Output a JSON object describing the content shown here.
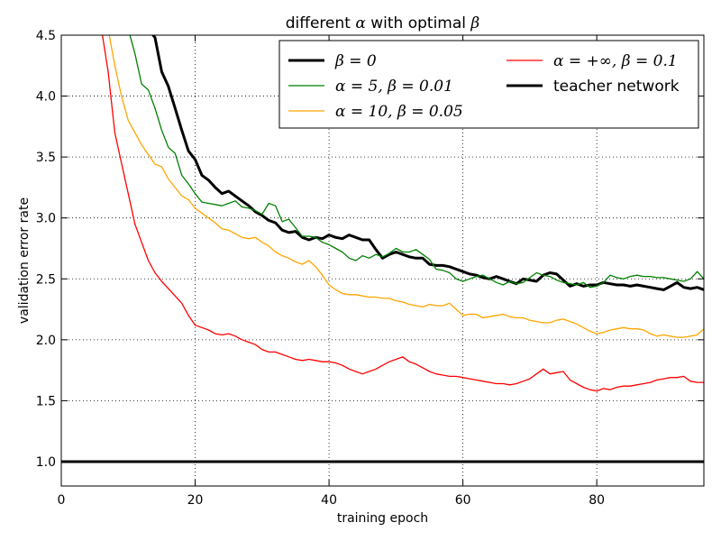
{
  "chart_data": {
    "type": "line",
    "title_prefix": "different ",
    "title_alpha": "α",
    "title_middle": " with optimal ",
    "title_beta": "β",
    "xlabel": "training epoch",
    "ylabel": "validation error rate",
    "xlim": [
      0,
      96
    ],
    "ylim": [
      0.8,
      4.5
    ],
    "xticks": [
      0,
      20,
      40,
      60,
      80
    ],
    "yticks": [
      1.0,
      1.5,
      2.0,
      2.5,
      3.0,
      3.5,
      4.0,
      4.5
    ],
    "ytick_labels": [
      "1.0",
      "1.5",
      "2.0",
      "2.5",
      "3.0",
      "3.5",
      "4.0",
      "4.5"
    ],
    "xtick_labels": [
      "0",
      "20",
      "40",
      "60",
      "80"
    ],
    "grid": true,
    "legend_position": "top-right",
    "series": [
      {
        "name": "β = 0",
        "color": "#000000",
        "stroke_width": 3,
        "x": [
          13,
          14,
          15,
          16,
          17,
          18,
          19,
          20,
          21,
          22,
          23,
          24,
          25,
          26,
          27,
          28,
          29,
          30,
          31,
          32,
          33,
          34,
          35,
          36,
          37,
          38,
          39,
          40,
          41,
          42,
          43,
          44,
          45,
          46,
          47,
          48,
          49,
          50,
          51,
          52,
          53,
          54,
          55,
          56,
          57,
          58,
          59,
          60,
          61,
          62,
          63,
          64,
          65,
          66,
          67,
          68,
          69,
          70,
          71,
          72,
          73,
          74,
          75,
          76,
          77,
          78,
          79,
          80,
          81,
          82,
          83,
          84,
          85,
          86,
          87,
          88,
          89,
          90,
          91,
          92,
          93,
          94,
          95,
          96
        ],
        "y": [
          4.55,
          4.48,
          4.2,
          4.08,
          3.9,
          3.72,
          3.55,
          3.48,
          3.35,
          3.31,
          3.25,
          3.2,
          3.22,
          3.18,
          3.14,
          3.1,
          3.05,
          3.02,
          2.98,
          2.96,
          2.9,
          2.88,
          2.89,
          2.84,
          2.82,
          2.84,
          2.83,
          2.86,
          2.84,
          2.83,
          2.86,
          2.84,
          2.82,
          2.82,
          2.74,
          2.67,
          2.7,
          2.72,
          2.7,
          2.68,
          2.67,
          2.67,
          2.62,
          2.61,
          2.61,
          2.6,
          2.58,
          2.56,
          2.54,
          2.53,
          2.51,
          2.5,
          2.52,
          2.5,
          2.48,
          2.46,
          2.5,
          2.49,
          2.48,
          2.53,
          2.55,
          2.54,
          2.49,
          2.44,
          2.46,
          2.44,
          2.45,
          2.45,
          2.47,
          2.46,
          2.45,
          2.45,
          2.44,
          2.45,
          2.44,
          2.43,
          2.42,
          2.41,
          2.44,
          2.47,
          2.43,
          2.42,
          2.43,
          2.41
        ]
      },
      {
        "name": "α = 5, β = 0.01",
        "color": "#008000",
        "stroke_width": 1.3,
        "x": [
          10,
          11,
          12,
          13,
          14,
          15,
          16,
          17,
          18,
          19,
          20,
          21,
          22,
          23,
          24,
          25,
          26,
          27,
          28,
          29,
          30,
          31,
          32,
          33,
          34,
          35,
          36,
          37,
          38,
          39,
          40,
          41,
          42,
          43,
          44,
          45,
          46,
          47,
          48,
          49,
          50,
          51,
          52,
          53,
          54,
          55,
          56,
          57,
          58,
          59,
          60,
          61,
          62,
          63,
          64,
          65,
          66,
          67,
          68,
          69,
          70,
          71,
          72,
          73,
          74,
          75,
          76,
          77,
          78,
          79,
          80,
          81,
          82,
          83,
          84,
          85,
          86,
          87,
          88,
          89,
          90,
          91,
          92,
          93,
          94,
          95,
          96
        ],
        "y": [
          4.55,
          4.35,
          4.1,
          4.05,
          3.9,
          3.72,
          3.58,
          3.53,
          3.35,
          3.28,
          3.2,
          3.13,
          3.12,
          3.11,
          3.1,
          3.12,
          3.14,
          3.09,
          3.08,
          3.06,
          3.03,
          3.12,
          3.1,
          2.97,
          2.99,
          2.92,
          2.85,
          2.85,
          2.84,
          2.8,
          2.78,
          2.75,
          2.72,
          2.67,
          2.65,
          2.69,
          2.67,
          2.7,
          2.68,
          2.71,
          2.75,
          2.72,
          2.72,
          2.74,
          2.7,
          2.66,
          2.58,
          2.57,
          2.55,
          2.5,
          2.48,
          2.5,
          2.52,
          2.53,
          2.5,
          2.47,
          2.45,
          2.48,
          2.46,
          2.47,
          2.51,
          2.55,
          2.53,
          2.52,
          2.49,
          2.47,
          2.46,
          2.45,
          2.47,
          2.43,
          2.44,
          2.47,
          2.53,
          2.51,
          2.5,
          2.52,
          2.53,
          2.52,
          2.52,
          2.51,
          2.51,
          2.5,
          2.49,
          2.48,
          2.5,
          2.56,
          2.5
        ]
      },
      {
        "name": "α = 10, β = 0.05",
        "color": "#FFA500",
        "stroke_width": 1.3,
        "x": [
          7,
          8,
          9,
          10,
          11,
          12,
          13,
          14,
          15,
          16,
          17,
          18,
          19,
          20,
          21,
          22,
          23,
          24,
          25,
          26,
          27,
          28,
          29,
          30,
          31,
          32,
          33,
          34,
          35,
          36,
          37,
          38,
          39,
          40,
          41,
          42,
          43,
          44,
          45,
          46,
          47,
          48,
          49,
          50,
          51,
          52,
          53,
          54,
          55,
          56,
          57,
          58,
          59,
          60,
          61,
          62,
          63,
          64,
          65,
          66,
          67,
          68,
          69,
          70,
          71,
          72,
          73,
          74,
          75,
          76,
          77,
          78,
          79,
          80,
          81,
          82,
          83,
          84,
          85,
          86,
          87,
          88,
          89,
          90,
          91,
          92,
          93,
          94,
          95,
          96
        ],
        "y": [
          4.55,
          4.25,
          4.0,
          3.8,
          3.7,
          3.6,
          3.52,
          3.44,
          3.42,
          3.32,
          3.25,
          3.18,
          3.15,
          3.08,
          3.04,
          3.0,
          2.96,
          2.91,
          2.9,
          2.87,
          2.84,
          2.83,
          2.84,
          2.8,
          2.77,
          2.72,
          2.69,
          2.67,
          2.64,
          2.62,
          2.65,
          2.6,
          2.53,
          2.45,
          2.41,
          2.38,
          2.37,
          2.37,
          2.36,
          2.35,
          2.35,
          2.34,
          2.34,
          2.32,
          2.31,
          2.29,
          2.28,
          2.27,
          2.29,
          2.28,
          2.28,
          2.3,
          2.25,
          2.2,
          2.21,
          2.21,
          2.18,
          2.19,
          2.2,
          2.21,
          2.19,
          2.18,
          2.18,
          2.16,
          2.15,
          2.14,
          2.14,
          2.16,
          2.17,
          2.15,
          2.13,
          2.1,
          2.07,
          2.05,
          2.06,
          2.08,
          2.09,
          2.1,
          2.09,
          2.09,
          2.08,
          2.05,
          2.03,
          2.04,
          2.03,
          2.02,
          2.02,
          2.03,
          2.04,
          2.09
        ]
      },
      {
        "name": "α = +∞, β = 0.1",
        "color": "#FF0000",
        "stroke_width": 1.3,
        "x": [
          6,
          7,
          8,
          9,
          10,
          11,
          12,
          13,
          14,
          15,
          16,
          17,
          18,
          19,
          20,
          21,
          22,
          23,
          24,
          25,
          26,
          27,
          28,
          29,
          30,
          31,
          32,
          33,
          34,
          35,
          36,
          37,
          38,
          39,
          40,
          41,
          42,
          43,
          44,
          45,
          46,
          47,
          48,
          49,
          50,
          51,
          52,
          53,
          54,
          55,
          56,
          57,
          58,
          59,
          60,
          61,
          62,
          63,
          64,
          65,
          66,
          67,
          68,
          69,
          70,
          71,
          72,
          73,
          74,
          75,
          76,
          77,
          78,
          79,
          80,
          81,
          82,
          83,
          84,
          85,
          86,
          87,
          88,
          89,
          90,
          91,
          92,
          93,
          94,
          95,
          96
        ],
        "y": [
          4.55,
          4.2,
          3.7,
          3.45,
          3.2,
          2.95,
          2.8,
          2.65,
          2.55,
          2.48,
          2.42,
          2.36,
          2.3,
          2.2,
          2.12,
          2.1,
          2.08,
          2.05,
          2.04,
          2.05,
          2.03,
          2.0,
          1.98,
          1.96,
          1.92,
          1.9,
          1.9,
          1.88,
          1.86,
          1.84,
          1.83,
          1.84,
          1.83,
          1.82,
          1.82,
          1.81,
          1.79,
          1.76,
          1.74,
          1.72,
          1.74,
          1.76,
          1.79,
          1.82,
          1.84,
          1.86,
          1.82,
          1.8,
          1.77,
          1.74,
          1.72,
          1.71,
          1.7,
          1.7,
          1.69,
          1.68,
          1.67,
          1.66,
          1.65,
          1.64,
          1.64,
          1.63,
          1.64,
          1.66,
          1.68,
          1.72,
          1.76,
          1.72,
          1.73,
          1.74,
          1.67,
          1.64,
          1.61,
          1.59,
          1.58,
          1.6,
          1.59,
          1.61,
          1.62,
          1.62,
          1.63,
          1.64,
          1.65,
          1.67,
          1.68,
          1.69,
          1.69,
          1.7,
          1.66,
          1.65,
          1.65
        ]
      },
      {
        "name": "teacher network",
        "color": "#000000",
        "stroke_width": 3,
        "x": [
          0,
          96
        ],
        "y": [
          1.0,
          1.0
        ]
      }
    ]
  },
  "legend": {
    "items": [
      {
        "label": "β = 0",
        "color": "#000000",
        "width": 3,
        "math": true
      },
      {
        "label": "α = 5,  β = 0.01",
        "color": "#008000",
        "width": 1.3,
        "math": true
      },
      {
        "label": "α = 10,  β = 0.05",
        "color": "#FFA500",
        "width": 1.3,
        "math": true
      },
      {
        "label": "α = +∞,  β = 0.1",
        "color": "#FF0000",
        "width": 1.3,
        "math": true
      },
      {
        "label": "teacher network",
        "color": "#000000",
        "width": 3,
        "math": false
      }
    ]
  }
}
